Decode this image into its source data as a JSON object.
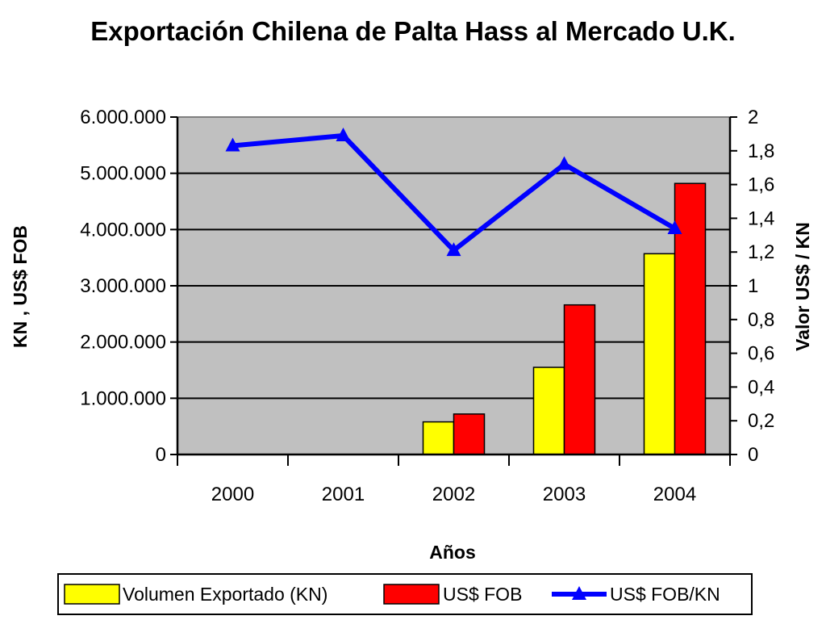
{
  "chart_data": {
    "type": "bar",
    "title": "Exportación Chilena de Palta Hass al Mercado U.K.",
    "xlabel": "Años",
    "ylabel": "KN , US$ FOB",
    "y2label": "Valor US$ / KN",
    "categories": [
      "2000",
      "2001",
      "2002",
      "2003",
      "2004"
    ],
    "ylim": [
      0,
      6000000
    ],
    "y2lim": [
      0,
      2
    ],
    "yticks": [
      "0",
      "1.000.000",
      "2.000.000",
      "3.000.000",
      "4.000.000",
      "5.000.000",
      "6.000.000"
    ],
    "y2ticks": [
      "0",
      "0,2",
      "0,4",
      "0,6",
      "0,8",
      "1",
      "1,2",
      "1,4",
      "1,6",
      "1,8",
      "2"
    ],
    "series": [
      {
        "name": "Volumen Exportado (KN)",
        "type": "bar",
        "axis": "left",
        "color": "#ffff00",
        "values": [
          0,
          0,
          580000,
          1550000,
          3570000
        ]
      },
      {
        "name": "US$ FOB",
        "type": "bar",
        "axis": "left",
        "color": "#ff0000",
        "values": [
          0,
          0,
          720000,
          2660000,
          4820000
        ]
      },
      {
        "name": "US$ FOB/KN",
        "type": "line",
        "axis": "right",
        "color": "#0000ff",
        "values": [
          1.83,
          1.89,
          1.21,
          1.72,
          1.34
        ]
      }
    ],
    "grid": true,
    "plot_background": "#c0c0c0",
    "legend": "bottom"
  }
}
